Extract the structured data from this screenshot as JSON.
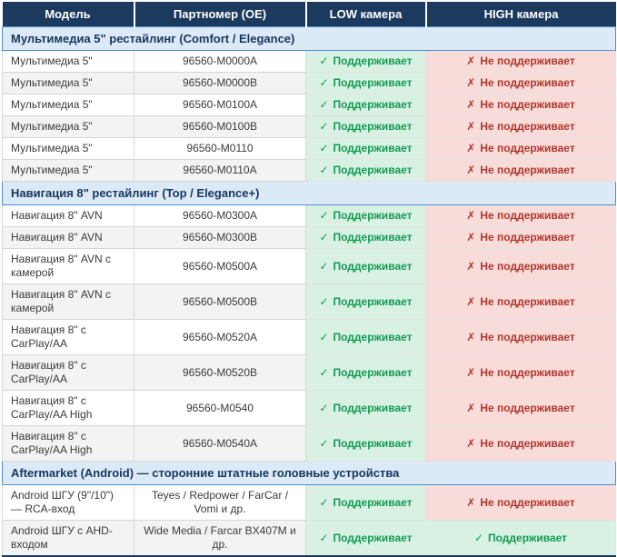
{
  "colors": {
    "header_bg": "#1c3a5e",
    "header_text": "#ffffff",
    "section_bg": "#dce9f7",
    "section_border": "#4f8fd0",
    "section_text": "#17365d",
    "yes_bg": "#d9f1e2",
    "yes_text": "#129c55",
    "no_bg": "#f8dcd9",
    "no_text": "#b0372e",
    "row_alt_bg": "#f3f3f3"
  },
  "table": {
    "columns": [
      {
        "label": "Модель"
      },
      {
        "label": "Партномер (OE)"
      },
      {
        "label": "LOW камера"
      },
      {
        "label": "HIGH камера"
      }
    ],
    "status_labels": {
      "yes": "Поддерживает",
      "no": "Не поддерживает"
    },
    "icons": {
      "check": "✓",
      "cross": "✗"
    },
    "sections": [
      {
        "title": "Мультимедиа 5\" рестайлинг (Comfort / Elegance)",
        "rows": [
          {
            "model": "Мультимедиа 5\"",
            "part": "96560-M0000A",
            "low": "yes",
            "high": "no"
          },
          {
            "model": "Мультимедиа 5\"",
            "part": "96560-M0000B",
            "low": "yes",
            "high": "no"
          },
          {
            "model": "Мультимедиа 5\"",
            "part": "96560-M0100A",
            "low": "yes",
            "high": "no"
          },
          {
            "model": "Мультимедиа 5\"",
            "part": "96560-M0100B",
            "low": "yes",
            "high": "no"
          },
          {
            "model": "Мультимедиа 5\"",
            "part": "96560-M0110",
            "low": "yes",
            "high": "no"
          },
          {
            "model": "Мультимедиа 5\"",
            "part": "96560-M0110A",
            "low": "yes",
            "high": "no"
          }
        ]
      },
      {
        "title": "Навигация 8\" рестайлинг (Top / Elegance+)",
        "rows": [
          {
            "model": "Навигация 8\" AVN",
            "part": "96560-M0300A",
            "low": "yes",
            "high": "no"
          },
          {
            "model": "Навигация 8\" AVN",
            "part": "96560-M0300B",
            "low": "yes",
            "high": "no"
          },
          {
            "model": "Навигация 8\" AVN с камерой",
            "part": "96560-M0500A",
            "low": "yes",
            "high": "no"
          },
          {
            "model": "Навигация 8\" AVN с камерой",
            "part": "96560-M0500B",
            "low": "yes",
            "high": "no"
          },
          {
            "model": "Навигация 8\" с CarPlay/AA",
            "part": "96560-M0520A",
            "low": "yes",
            "high": "no"
          },
          {
            "model": "Навигация 8\" с CarPlay/AA",
            "part": "96560-M0520B",
            "low": "yes",
            "high": "no"
          },
          {
            "model": "Навигация 8\" с CarPlay/AA High",
            "part": "96560-M0540",
            "low": "yes",
            "high": "no"
          },
          {
            "model": "Навигация 8\" с CarPlay/AA High",
            "part": "96560-M0540A",
            "low": "yes",
            "high": "no"
          }
        ]
      },
      {
        "title": "Aftermarket (Android) — сторонние штатные головные устройства",
        "rows": [
          {
            "model": "Android ШГУ (9\"/10\") — RCA-вход",
            "part": "Teyes / Redpower / FarCar / Vomi и др.",
            "low": "yes",
            "high": "no"
          },
          {
            "model": "Android ШГУ с AHD-входом",
            "part": "Wide Media / Farcar BX407M и др.",
            "low": "yes",
            "high": "yes"
          }
        ]
      }
    ]
  }
}
